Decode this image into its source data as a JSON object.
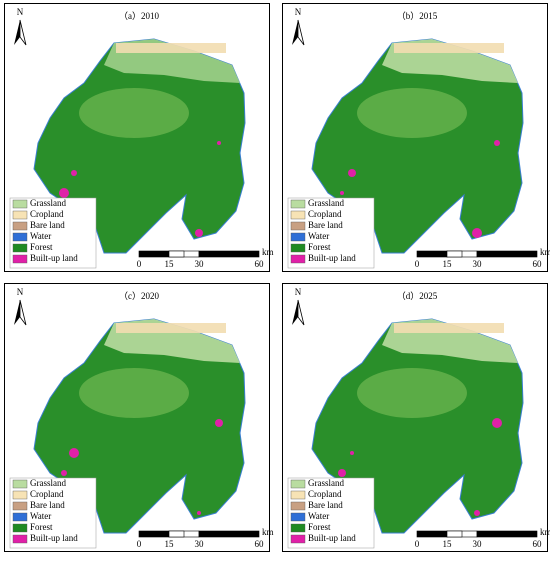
{
  "north": "N",
  "panels": [
    {
      "title": "（a）2010"
    },
    {
      "title": "（b）2015"
    },
    {
      "title": "（c）2020"
    },
    {
      "title": "（d）2025"
    }
  ],
  "legend": [
    {
      "label": "Grassland",
      "color": "#b9dca0"
    },
    {
      "label": "Cropland",
      "color": "#f7e3b5"
    },
    {
      "label": "Bare land",
      "color": "#c8a083"
    },
    {
      "label": "Water",
      "color": "#2f6fd6"
    },
    {
      "label": "Forest",
      "color": "#1f8a22"
    },
    {
      "label": "Built-up land",
      "color": "#e020a8"
    }
  ],
  "scale": {
    "labels": [
      "0",
      "15",
      "30",
      "60"
    ],
    "unit": "km"
  }
}
